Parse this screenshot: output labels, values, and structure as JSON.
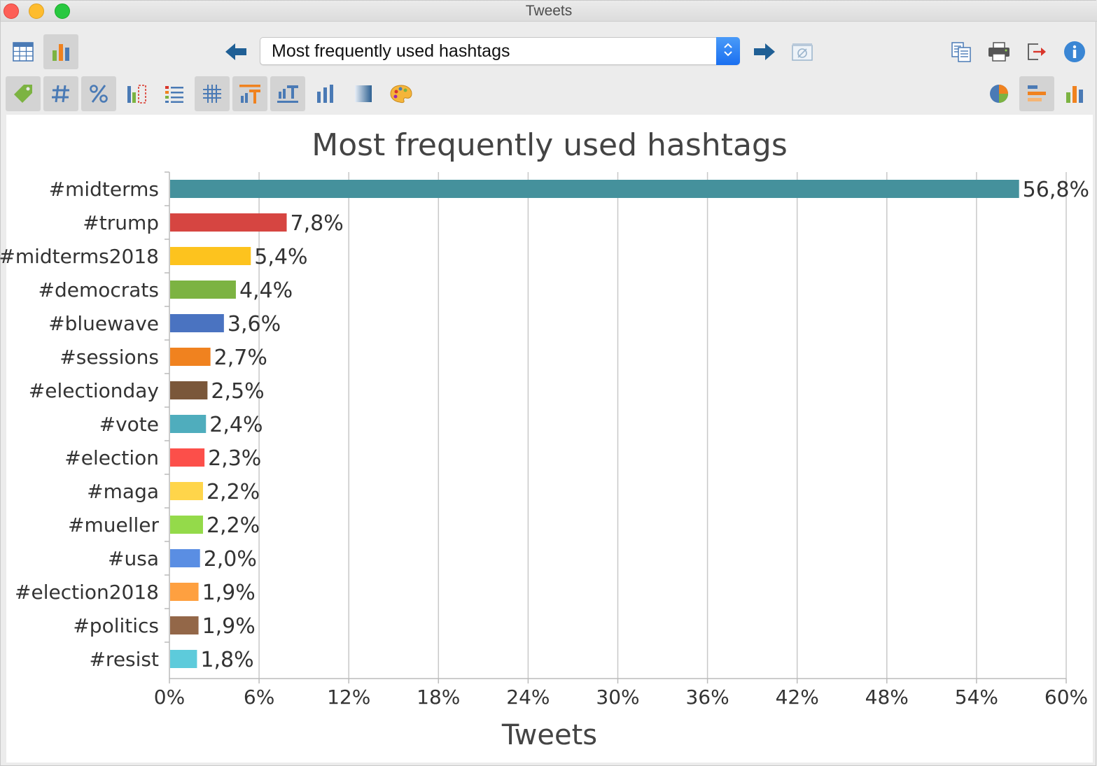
{
  "window": {
    "title": "Tweets"
  },
  "toolbar": {
    "selector_value": "Most frequently used hashtags",
    "row1_left": [
      {
        "icon": "table-view-icon",
        "active": false
      },
      {
        "icon": "chart-view-icon",
        "active": true
      }
    ],
    "row1_nav": [
      {
        "icon": "arrow-left-icon"
      },
      {
        "icon": "arrow-right-icon"
      },
      {
        "icon": "filter-off-icon"
      }
    ],
    "row1_right": [
      {
        "icon": "copy-icon"
      },
      {
        "icon": "print-icon"
      },
      {
        "icon": "export-icon"
      },
      {
        "icon": "info-icon"
      }
    ],
    "row2_left": [
      {
        "icon": "label-tag-icon",
        "active": true
      },
      {
        "icon": "hash-icon",
        "active": true
      },
      {
        "icon": "percent-icon",
        "active": true
      },
      {
        "icon": "sort-bars-icon",
        "active": false
      },
      {
        "icon": "list-icon",
        "active": false
      },
      {
        "icon": "grid-lines-icon",
        "active": true
      },
      {
        "icon": "title-chart-icon",
        "active": true
      },
      {
        "icon": "axis-title-icon",
        "active": true
      },
      {
        "icon": "bar-3d-icon",
        "active": false
      },
      {
        "icon": "gradient-icon",
        "active": false
      },
      {
        "icon": "color-palette-icon",
        "active": false
      }
    ],
    "row2_right": [
      {
        "icon": "pie-chart-icon",
        "active": false
      },
      {
        "icon": "horizontal-bar-icon",
        "active": true
      },
      {
        "icon": "vertical-bar-icon",
        "active": false
      }
    ]
  },
  "chart_data": {
    "type": "bar",
    "orientation": "horizontal",
    "title": "Most frequently used hashtags",
    "xlabel": "Tweets",
    "ylabel": "",
    "xlim": [
      0,
      60
    ],
    "xticks": [
      "0%",
      "6%",
      "12%",
      "18%",
      "24%",
      "30%",
      "36%",
      "42%",
      "48%",
      "54%",
      "60%"
    ],
    "grid": true,
    "legend": "none",
    "categories": [
      "#midterms",
      "#trump",
      "#midterms2018",
      "#democrats",
      "#bluewave",
      "#sessions",
      "#electionday",
      "#vote",
      "#election",
      "#maga",
      "#mueller",
      "#usa",
      "#election2018",
      "#politics",
      "#resist"
    ],
    "values": [
      56.8,
      7.8,
      5.4,
      4.4,
      3.6,
      2.7,
      2.5,
      2.4,
      2.3,
      2.2,
      2.2,
      2.0,
      1.9,
      1.9,
      1.8
    ],
    "value_labels": [
      "56,8%",
      "7,8%",
      "5,4%",
      "4,4%",
      "3,6%",
      "2,7%",
      "2,5%",
      "2,4%",
      "2,3%",
      "2,2%",
      "2,2%",
      "2,0%",
      "1,9%",
      "1,9%",
      "1,8%"
    ],
    "colors": [
      "#45919c",
      "#d64541",
      "#fdc31e",
      "#7cb342",
      "#4a73c1",
      "#f0821f",
      "#7a573a",
      "#4fadbd",
      "#fc4f4a",
      "#ffd54a",
      "#94da4a",
      "#5a8ee3",
      "#fea040",
      "#936748",
      "#5dcbdb"
    ]
  }
}
